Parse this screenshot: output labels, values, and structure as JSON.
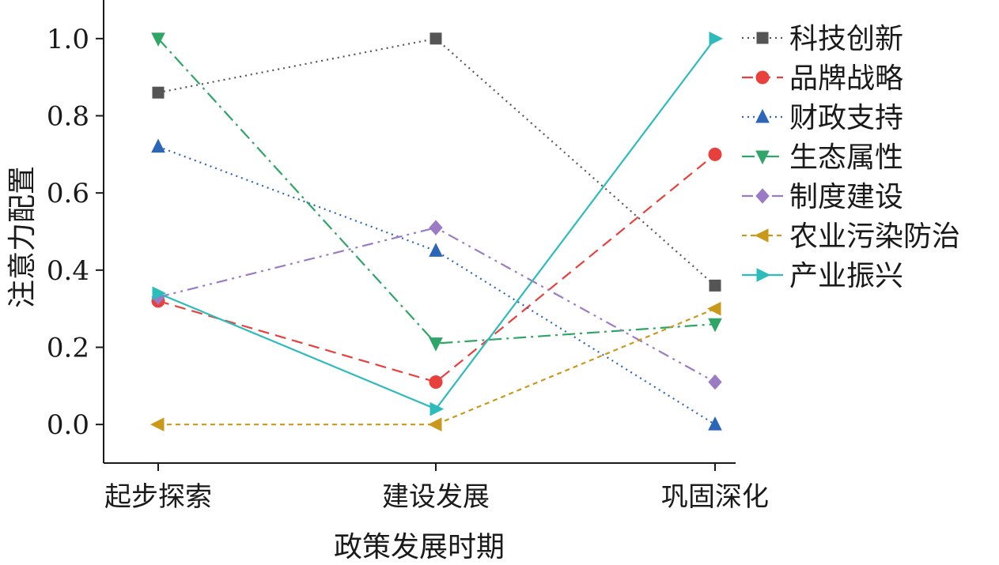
{
  "chart_data": {
    "type": "line",
    "xlabel": "政策发展时期",
    "ylabel": "注意力配置",
    "categories": [
      "起步探索",
      "建设发展",
      "巩固深化"
    ],
    "ylim": [
      -0.1,
      1.1
    ],
    "yticks": [
      "0.0",
      "0.2",
      "0.4",
      "0.6",
      "0.8",
      "1.0"
    ],
    "legend_position": "top-right",
    "grid": false,
    "series": [
      {
        "name": "科技创新",
        "values": [
          0.86,
          1.0,
          0.36
        ],
        "color": "#555555",
        "dash": "dotted",
        "marker": "square"
      },
      {
        "name": "品牌战略",
        "values": [
          0.32,
          0.11,
          0.7
        ],
        "color": "#e8403d",
        "dash": "dashed",
        "marker": "circle"
      },
      {
        "name": "财政支持",
        "values": [
          0.72,
          0.45,
          0.0
        ],
        "color": "#2b66b8",
        "dash": "dotted",
        "marker": "triangle-up"
      },
      {
        "name": "生态属性",
        "values": [
          1.0,
          0.21,
          0.26
        ],
        "color": "#2fa567",
        "dash": "dashdot",
        "marker": "triangle-down"
      },
      {
        "name": "制度建设",
        "values": [
          0.33,
          0.51,
          0.11
        ],
        "color": "#9b7bc4",
        "dash": "dashdotdot",
        "marker": "diamond"
      },
      {
        "name": "农业污染防治",
        "values": [
          0.0,
          0.0,
          0.3
        ],
        "color": "#c99a1a",
        "dash": "shortdash",
        "marker": "triangle-left"
      },
      {
        "name": "产业振兴",
        "values": [
          0.34,
          0.04,
          1.0
        ],
        "color": "#2ebbbb",
        "dash": "solid",
        "marker": "triangle-right"
      }
    ]
  }
}
